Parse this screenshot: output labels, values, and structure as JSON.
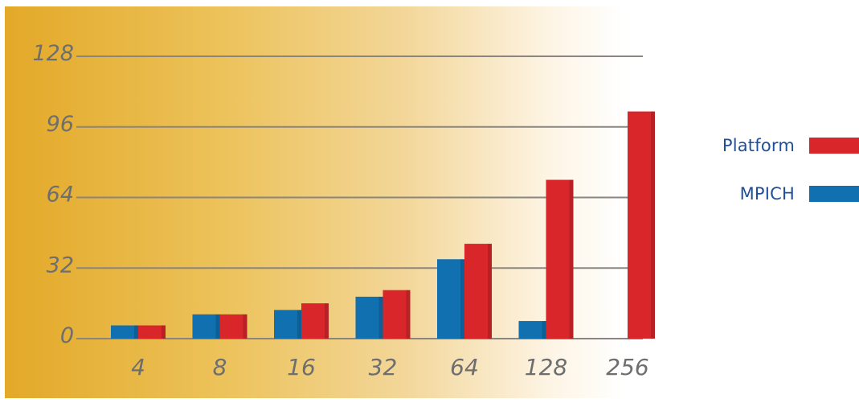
{
  "chart_data": {
    "type": "bar",
    "categories": [
      "4",
      "8",
      "16",
      "32",
      "64",
      "128",
      "256"
    ],
    "series": [
      {
        "name": "MPICH",
        "values": [
          6,
          11,
          13,
          19,
          36,
          8,
          0
        ],
        "color": "#1070b0"
      },
      {
        "name": "Platform",
        "values": [
          6,
          11,
          16,
          22,
          43,
          72,
          103
        ],
        "color": "#d8262b"
      }
    ],
    "ylim": [
      0,
      128
    ],
    "yticks": [
      0,
      32,
      64,
      96,
      128
    ],
    "grid": true,
    "legend_position": "right",
    "background": {
      "from": "#e3a928",
      "to": "#ffffff"
    }
  },
  "legend": {
    "items": [
      {
        "label": "Platform",
        "color": "#d8262b"
      },
      {
        "label": "MPICH",
        "color": "#1070b0"
      }
    ]
  }
}
